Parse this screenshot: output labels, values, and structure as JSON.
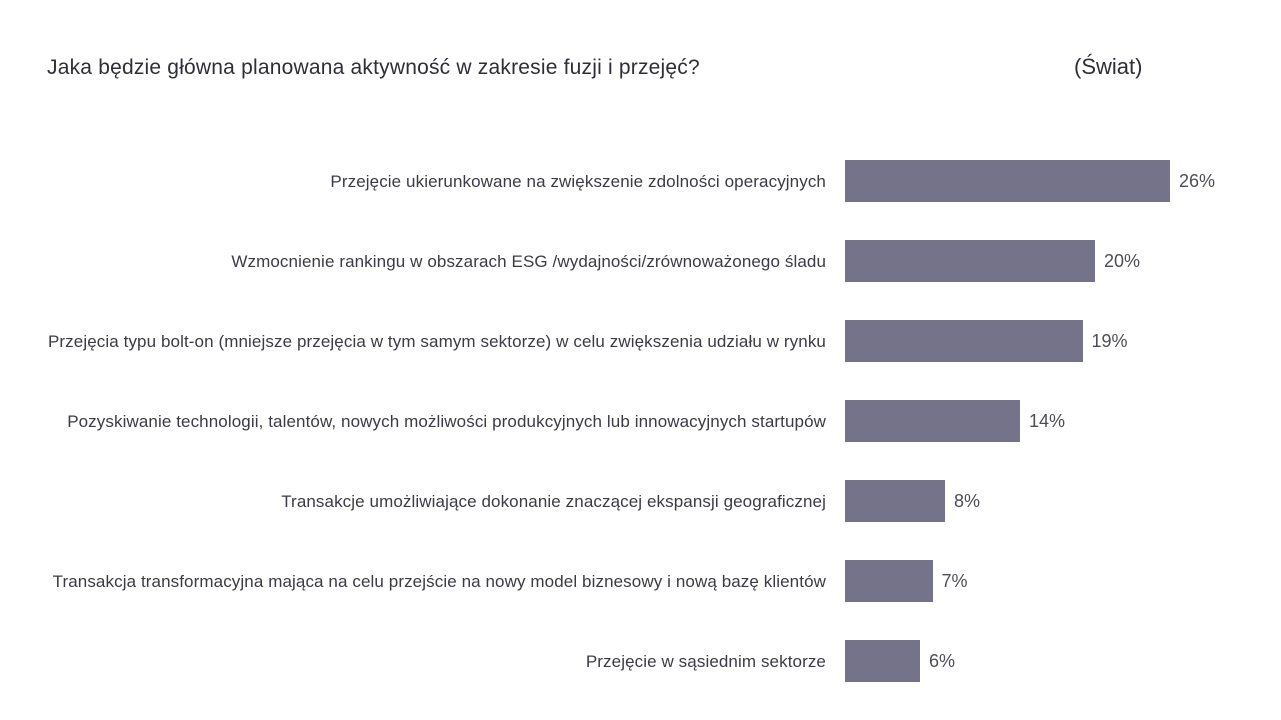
{
  "header": {
    "title": "Jaka będzie główna planowana aktywność w zakresie fuzji i przejęć?",
    "scope": "(Świat)"
  },
  "chart_data": {
    "type": "bar",
    "orientation": "horizontal",
    "title": "Jaka będzie główna planowana aktywność w zakresie fuzji i przejęć?",
    "subtitle": "(Świat)",
    "categories": [
      "Przejęcie ukierunkowane na zwiększenie zdolności operacyjnych",
      "Wzmocnienie rankingu w obszarach ESG /wydajności/zrównoważonego śladu",
      "Przejęcia typu bolt-on (mniejsze przejęcia w tym samym sektorze) w celu zwiększenia udziału w rynku",
      "Pozyskiwanie technologii, talentów, nowych możliwości produkcyjnych lub innowacyjnych startupów",
      "Transakcje umożliwiające dokonanie znaczącej ekspansji geograficznej",
      "Transakcja transformacyjna mająca na celu przejście na nowy model biznesowy i nową bazę klientów",
      "Przejęcie w sąsiednim sektorze"
    ],
    "values": [
      26,
      20,
      19,
      14,
      8,
      7,
      6
    ],
    "value_labels": [
      "26%",
      "20%",
      "19%",
      "14%",
      "8%",
      "7%",
      "6%"
    ],
    "value_suffix": "%",
    "xlim": [
      0,
      26
    ],
    "bar_color": "#75738a",
    "grid": false,
    "legend": "none",
    "axes_visible": false
  }
}
